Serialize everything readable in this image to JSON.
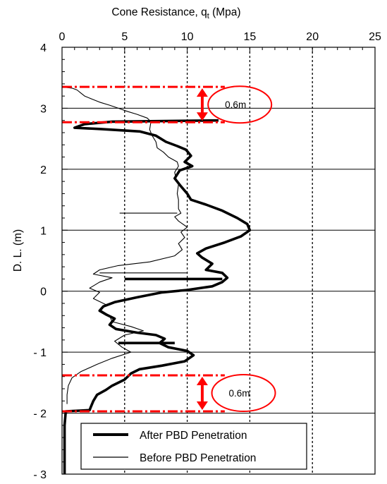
{
  "chart_data": {
    "type": "line",
    "title": "Cone Resistance, q",
    "title_sub": "t",
    "title_units": " (Mpa)",
    "xlabel": "Cone Resistance, qt (Mpa)",
    "ylabel": "D. L. (m)",
    "xlim": [
      0,
      25
    ],
    "ylim": [
      -3,
      4
    ],
    "x_ticks": [
      0,
      5,
      10,
      15,
      20,
      25
    ],
    "x_tick_labels": [
      "0",
      "5",
      "10",
      "15",
      "20",
      "25"
    ],
    "y_ticks": [
      4,
      3,
      2,
      1,
      0,
      -1,
      -2,
      -3
    ],
    "y_tick_labels": [
      "4",
      "3",
      "2",
      "1",
      "0",
      "- 1",
      "- 2",
      "- 3"
    ],
    "x_axis_position": "top",
    "grid": {
      "vertical": "dotted",
      "horizontal": "solid"
    },
    "legend": {
      "position": "bottom"
    },
    "series": [
      {
        "name": "After PBD Penetration",
        "style": "thick",
        "color": "#000000",
        "points": [
          [
            12.5,
            2.8
          ],
          [
            4.0,
            2.78
          ],
          [
            1.8,
            2.74
          ],
          [
            1.0,
            2.68
          ],
          [
            3.0,
            2.66
          ],
          [
            6.2,
            2.62
          ],
          [
            7.5,
            2.55
          ],
          [
            8.3,
            2.45
          ],
          [
            9.2,
            2.38
          ],
          [
            9.9,
            2.32
          ],
          [
            10.3,
            2.22
          ],
          [
            9.8,
            2.12
          ],
          [
            10.4,
            2.05
          ],
          [
            9.4,
            1.98
          ],
          [
            9.0,
            1.85
          ],
          [
            9.5,
            1.72
          ],
          [
            10.0,
            1.6
          ],
          [
            10.3,
            1.5
          ],
          [
            11.5,
            1.42
          ],
          [
            12.8,
            1.32
          ],
          [
            14.0,
            1.2
          ],
          [
            14.8,
            1.1
          ],
          [
            15.0,
            1.0
          ],
          [
            14.3,
            0.9
          ],
          [
            13.0,
            0.8
          ],
          [
            11.5,
            0.7
          ],
          [
            10.8,
            0.62
          ],
          [
            11.2,
            0.55
          ],
          [
            12.0,
            0.45
          ],
          [
            11.5,
            0.35
          ],
          [
            12.8,
            0.3
          ],
          [
            13.2,
            0.22
          ],
          [
            12.8,
            0.15
          ],
          [
            12.0,
            0.08
          ],
          [
            10.0,
            0.02
          ],
          [
            8.0,
            -0.02
          ],
          [
            6.0,
            -0.1
          ],
          [
            4.2,
            -0.18
          ],
          [
            3.3,
            -0.25
          ],
          [
            3.0,
            -0.32
          ],
          [
            3.5,
            -0.38
          ],
          [
            4.2,
            -0.45
          ],
          [
            3.8,
            -0.55
          ],
          [
            4.3,
            -0.62
          ],
          [
            6.0,
            -0.68
          ],
          [
            7.5,
            -0.72
          ],
          [
            8.2,
            -0.78
          ],
          [
            7.8,
            -0.85
          ],
          [
            8.5,
            -0.92
          ],
          [
            10.0,
            -0.98
          ],
          [
            10.5,
            -1.05
          ],
          [
            9.8,
            -1.15
          ],
          [
            8.0,
            -1.22
          ],
          [
            6.2,
            -1.28
          ],
          [
            5.5,
            -1.35
          ],
          [
            5.0,
            -1.45
          ],
          [
            4.0,
            -1.55
          ],
          [
            3.5,
            -1.62
          ],
          [
            2.8,
            -1.7
          ],
          [
            2.5,
            -1.8
          ],
          [
            2.3,
            -1.9
          ],
          [
            2.2,
            -1.95
          ],
          [
            0.3,
            -1.97
          ],
          [
            0.2,
            -2.2
          ],
          [
            0.2,
            -2.6
          ],
          [
            0.2,
            -3.0
          ]
        ],
        "spikes": [
          {
            "y": 0.2,
            "x_from": 5.0,
            "x_to": 12.8
          },
          {
            "y": -0.85,
            "x_from": 4.5,
            "x_to": 9.0
          }
        ]
      },
      {
        "name": "Before PBD Penetration",
        "style": "thin",
        "color": "#000000",
        "points": [
          [
            0.0,
            3.35
          ],
          [
            0.8,
            3.33
          ],
          [
            1.2,
            3.3
          ],
          [
            1.5,
            3.25
          ],
          [
            1.8,
            3.2
          ],
          [
            2.4,
            3.15
          ],
          [
            3.0,
            3.1
          ],
          [
            3.8,
            3.05
          ],
          [
            4.5,
            3.0
          ],
          [
            5.2,
            2.95
          ],
          [
            6.0,
            2.9
          ],
          [
            6.8,
            2.84
          ],
          [
            7.1,
            2.78
          ],
          [
            7.0,
            2.65
          ],
          [
            7.2,
            2.55
          ],
          [
            7.5,
            2.45
          ],
          [
            7.6,
            2.35
          ],
          [
            8.1,
            2.28
          ],
          [
            8.5,
            2.2
          ],
          [
            9.2,
            2.12
          ],
          [
            9.3,
            2.05
          ],
          [
            9.0,
            1.95
          ],
          [
            9.1,
            1.85
          ],
          [
            9.3,
            1.75
          ],
          [
            9.2,
            1.6
          ],
          [
            9.3,
            1.5
          ],
          [
            9.3,
            1.35
          ],
          [
            9.5,
            1.28
          ],
          [
            9.0,
            1.22
          ],
          [
            9.3,
            1.15
          ],
          [
            10.0,
            1.05
          ],
          [
            9.5,
            0.97
          ],
          [
            9.8,
            0.88
          ],
          [
            9.3,
            0.78
          ],
          [
            9.6,
            0.68
          ],
          [
            9.0,
            0.58
          ],
          [
            7.0,
            0.48
          ],
          [
            4.5,
            0.42
          ],
          [
            3.0,
            0.35
          ],
          [
            2.5,
            0.28
          ],
          [
            4.0,
            0.22
          ],
          [
            3.0,
            0.15
          ],
          [
            2.2,
            0.05
          ],
          [
            3.0,
            -0.02
          ],
          [
            2.5,
            -0.12
          ],
          [
            3.5,
            -0.22
          ],
          [
            3.0,
            -0.3
          ],
          [
            3.8,
            -0.4
          ],
          [
            4.0,
            -0.5
          ],
          [
            5.5,
            -0.58
          ],
          [
            6.5,
            -0.65
          ],
          [
            5.0,
            -0.72
          ],
          [
            4.2,
            -0.82
          ],
          [
            4.8,
            -0.92
          ],
          [
            5.5,
            -1.0
          ],
          [
            4.0,
            -1.1
          ],
          [
            2.8,
            -1.2
          ],
          [
            1.5,
            -1.32
          ],
          [
            0.8,
            -1.42
          ],
          [
            0.5,
            -1.55
          ],
          [
            0.4,
            -1.7
          ],
          [
            0.4,
            -1.85
          ]
        ],
        "spikes": [
          {
            "y": 1.28,
            "x_from": 4.6,
            "x_to": 9.2
          },
          {
            "y": 0.3,
            "x_from": 3.0,
            "x_to": 10.0
          }
        ]
      }
    ],
    "annotations": [
      {
        "label": "0.6m",
        "y_top": 3.35,
        "y_bottom": 2.77,
        "x_from": 0,
        "x_to": 13,
        "arrow_x": 11.2,
        "ellipse_center": [
          14.2,
          3.06
        ],
        "color": "#ff0000"
      },
      {
        "label": "0.6m",
        "y_top": -1.38,
        "y_bottom": -1.97,
        "x_from": 0,
        "x_to": 13,
        "arrow_x": 11.2,
        "ellipse_center": [
          14.5,
          -1.67
        ],
        "color": "#ff0000"
      }
    ]
  }
}
